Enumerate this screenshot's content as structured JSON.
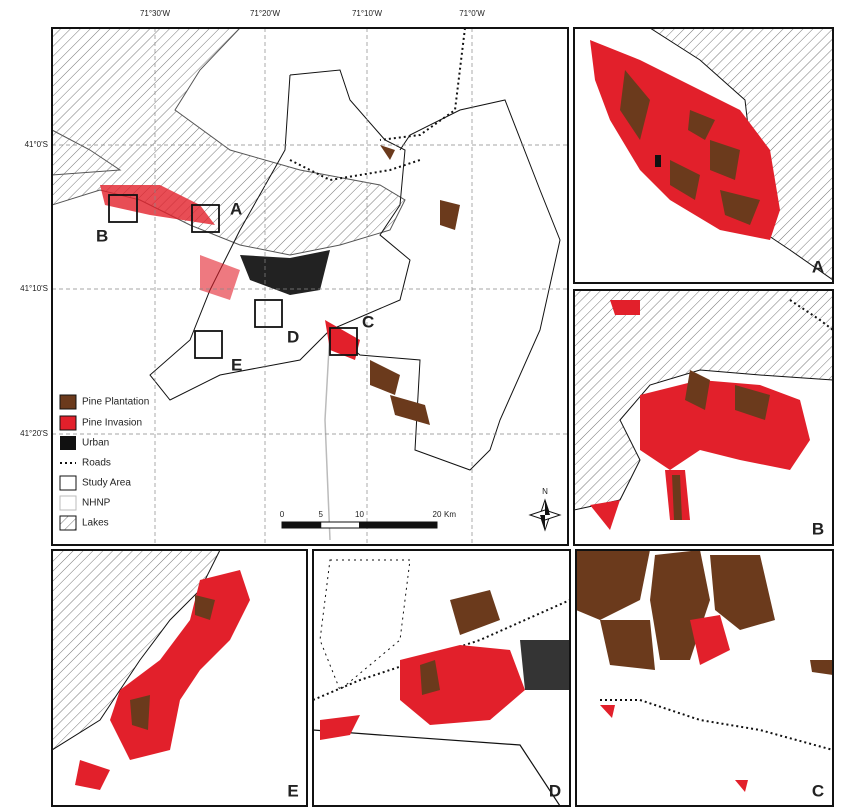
{
  "map": {
    "lon_labels": [
      "71°30'W",
      "71°20'W",
      "71°10'W",
      "71°0'W"
    ],
    "lat_labels": [
      "41°0'S",
      "41°10'S",
      "41°20'S"
    ],
    "box_labels": [
      "A",
      "B",
      "C",
      "D",
      "E"
    ],
    "legend": [
      "Pine Plantation",
      "Pine Invasion",
      "Urban",
      "Roads",
      "Study Area",
      "NHNP",
      "Lakes"
    ],
    "scale_bar": {
      "ticks": [
        0,
        5,
        10,
        20
      ],
      "unit": "Km"
    },
    "north": "N"
  },
  "panels": [
    "A",
    "B",
    "E",
    "D",
    "C"
  ]
}
